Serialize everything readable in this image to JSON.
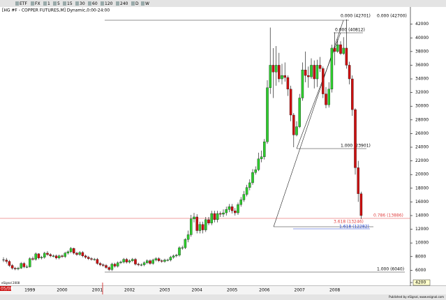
{
  "toolbar": [
    "ETF",
    "FX",
    "1",
    "5",
    "15",
    "30",
    "60",
    "120",
    "240",
    "D",
    "W"
  ],
  "chart_data": {
    "type": "candlestick",
    "title": "[HG #F - COPPER FUTURES,M] Dynamic,0:00-24:00",
    "categories": [
      null,
      null,
      null,
      null,
      null,
      null,
      null,
      null,
      null,
      "1999",
      null,
      null,
      null,
      null,
      null,
      null,
      null,
      null,
      null,
      null,
      "2000",
      null,
      null,
      null,
      null,
      null,
      null,
      null,
      null,
      null,
      null,
      null,
      "2001",
      null,
      null,
      null,
      null,
      null,
      null,
      null,
      null,
      null,
      null,
      "2002",
      null,
      null,
      null,
      null,
      null,
      null,
      null,
      null,
      null,
      null,
      null,
      "2003",
      null,
      null,
      null,
      null,
      null,
      null,
      null,
      null,
      null,
      null,
      "2004",
      null,
      null,
      null,
      null,
      null,
      null,
      null,
      null,
      null,
      null,
      null,
      "2005",
      null,
      null,
      null,
      null,
      null,
      null,
      null,
      null,
      null,
      null,
      "2006",
      null,
      null,
      null,
      null,
      null,
      null,
      null,
      null,
      null,
      null,
      null,
      "2007",
      null,
      null,
      null,
      null,
      null,
      null,
      null,
      null,
      null,
      null,
      null,
      "2008",
      null,
      null,
      null,
      null,
      null,
      null,
      null,
      null,
      null
    ],
    "close": [
      7500,
      7300,
      6700,
      6300,
      6200,
      6300,
      7000,
      6500,
      6500,
      7700,
      7600,
      8400,
      7800,
      7900,
      8500,
      8300,
      8100,
      8100,
      7800,
      8100,
      8000,
      8500,
      8700,
      9200,
      8500,
      8300,
      8600,
      8100,
      7900,
      7700,
      7600,
      7600,
      7000,
      6800,
      6700,
      6400,
      6100,
      6900,
      6600,
      7100,
      7200,
      7600,
      7200,
      7400,
      7600,
      6900,
      6800,
      6800,
      7100,
      7400,
      7000,
      7500,
      7700,
      7400,
      7300,
      7500,
      7500,
      7900,
      8100,
      8200,
      9300,
      9300,
      10500,
      11200,
      13500,
      13800,
      11800,
      12700,
      11900,
      13400,
      12900,
      14300,
      13400,
      14300,
      14200,
      14400,
      14900,
      15300,
      14700,
      14400,
      15600,
      16300,
      17100,
      18100,
      18800,
      20300,
      20700,
      22300,
      22600,
      24800,
      32700,
      36000,
      35000,
      36000,
      34000,
      34500,
      34200,
      32500,
      28700,
      25800,
      27000,
      31200,
      35300,
      34500,
      34300,
      36000,
      34000,
      36000,
      35500,
      31800,
      30200,
      32500,
      38500,
      38000,
      39000,
      37700,
      38500,
      36000,
      34000,
      29500,
      21000,
      17200,
      14000
    ],
    "high": [
      7900,
      7800,
      7500,
      6900,
      6500,
      6500,
      7200,
      7200,
      6800,
      7900,
      8000,
      8600,
      8500,
      8100,
      8700,
      8800,
      8500,
      8300,
      8300,
      8300,
      8300,
      8700,
      8900,
      9400,
      9300,
      8700,
      8800,
      8800,
      8300,
      8100,
      7900,
      7800,
      7800,
      7200,
      7000,
      6900,
      6600,
      7100,
      7100,
      7300,
      7400,
      7800,
      7800,
      7600,
      7800,
      7800,
      7100,
      7000,
      7300,
      7600,
      7600,
      7700,
      7900,
      7900,
      7600,
      7700,
      7700,
      8100,
      8300,
      8400,
      9500,
      9600,
      10700,
      11800,
      14100,
      14400,
      14200,
      13100,
      13100,
      13800,
      13800,
      14700,
      14700,
      14700,
      14600,
      14900,
      15300,
      15700,
      15700,
      15100,
      15900,
      16700,
      17600,
      18500,
      19300,
      20800,
      21200,
      23200,
      23500,
      25200,
      33800,
      41500,
      38500,
      38800,
      37800,
      36200,
      36400,
      34500,
      33000,
      29000,
      27800,
      31800,
      36400,
      38000,
      35800,
      37000,
      36700,
      36800,
      37200,
      35800,
      32800,
      33500,
      39000,
      40800,
      39800,
      39500,
      40100,
      42701,
      36500,
      34500,
      29700,
      22000,
      17500
    ],
    "low": [
      7200,
      7000,
      6500,
      6100,
      6000,
      6000,
      6200,
      6300,
      6300,
      6400,
      7400,
      7400,
      7600,
      7600,
      7700,
      8100,
      7900,
      7900,
      7600,
      7600,
      7800,
      7800,
      8300,
      8500,
      8300,
      8100,
      8100,
      7900,
      7700,
      7500,
      7400,
      7400,
      6800,
      6600,
      6500,
      6200,
      5900,
      5900,
      6400,
      6400,
      6900,
      7000,
      7000,
      7000,
      7200,
      6700,
      6600,
      6600,
      6600,
      6900,
      6800,
      6800,
      7300,
      7200,
      7100,
      7100,
      7300,
      7300,
      7700,
      7900,
      8000,
      9000,
      9100,
      10100,
      10900,
      13000,
      11400,
      11400,
      11400,
      11600,
      12600,
      12600,
      13000,
      13000,
      13800,
      13800,
      14000,
      14500,
      14300,
      14000,
      14100,
      15300,
      16000,
      16800,
      17700,
      18500,
      20000,
      20500,
      21800,
      22200,
      24500,
      31800,
      31200,
      33000,
      33500,
      33200,
      33600,
      31500,
      27800,
      24000,
      25600,
      26800,
      30800,
      33500,
      32700,
      34000,
      32600,
      32800,
      35000,
      31200,
      29700,
      29800,
      32000,
      36000,
      37800,
      37500,
      37500,
      35500,
      33200,
      28600,
      20000,
      16000,
      13500
    ],
    "up_color": "#2ecc2e",
    "down_color": "#cc1010",
    "ylim": [
      4200,
      43700
    ],
    "yticks": [
      4200,
      6000,
      8000,
      10000,
      12000,
      14000,
      16000,
      18000,
      20000,
      22000,
      24000,
      26000,
      28000,
      30000,
      32000,
      34000,
      36000,
      38000,
      40000,
      42000
    ],
    "annotations": [
      "0.000 (42701)",
      "0.000 (42700)",
      "0.000 (40812)",
      "1.000 (23901)",
      "0.786 (13886)",
      "3.618 (13246)",
      "1.618 (12282)",
      "1.000 (6040)"
    ],
    "watermark": "eSignal 2008",
    "date": "05/08",
    "footer": "Published by eSignal, www.esignal.com"
  }
}
